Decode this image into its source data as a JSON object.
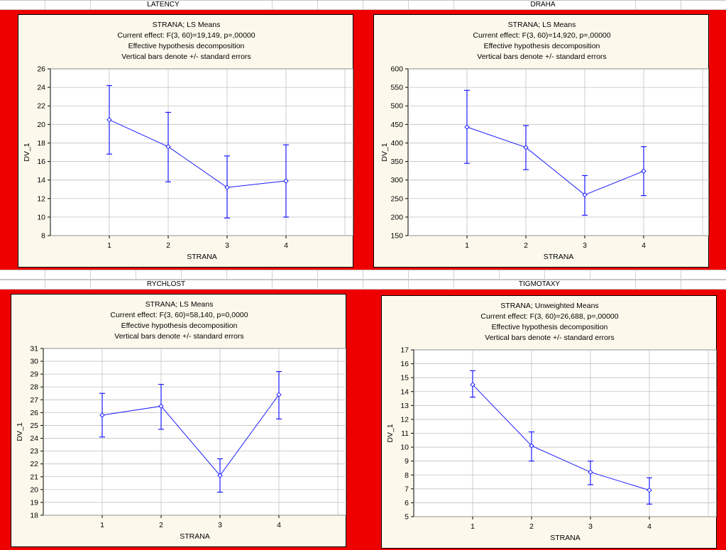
{
  "sheet": {
    "top_labels": [
      "LATENCY",
      "DRAHA"
    ],
    "bottom_labels": [
      "RYCHLOST",
      "TIGMOTAXY"
    ]
  },
  "colors": {
    "panel": "#ee0000",
    "plot_bg": "#fcf9ec",
    "series": "#1a1aff",
    "grid": "#c0c0c0"
  },
  "chart_data": [
    {
      "type": "line",
      "sheet_label": "LATENCY",
      "title_lines": [
        "STRANA; LS Means",
        "Current effect: F(3, 60)=19,149, p=,00000",
        "Effective hypothesis decomposition",
        "Vertical bars denote +/- standard errors"
      ],
      "xlabel": "STRANA",
      "ylabel": "DV_1",
      "categories": [
        "1",
        "2",
        "3",
        "4"
      ],
      "values": [
        20.5,
        17.6,
        13.2,
        13.9
      ],
      "lower": [
        16.8,
        13.8,
        9.9,
        10.0
      ],
      "upper": [
        24.2,
        21.3,
        16.6,
        17.8
      ],
      "ylim": [
        8,
        26
      ],
      "yticks": [
        8,
        10,
        12,
        14,
        16,
        18,
        20,
        22,
        24,
        26
      ],
      "grid": true
    },
    {
      "type": "line",
      "sheet_label": "DRAHA",
      "title_lines": [
        "STRANA; LS Means",
        "Current effect: F(3, 60)=14,920, p=,00000",
        "Effective hypothesis decomposition",
        "Vertical bars denote +/- standard errors"
      ],
      "xlabel": "STRANA",
      "ylabel": "DV_1",
      "categories": [
        "1",
        "2",
        "3",
        "4"
      ],
      "values": [
        443,
        388,
        260,
        324
      ],
      "lower": [
        345,
        328,
        205,
        258
      ],
      "upper": [
        542,
        447,
        312,
        390
      ],
      "ylim": [
        150,
        600
      ],
      "yticks": [
        150,
        200,
        250,
        300,
        350,
        400,
        450,
        500,
        550,
        600
      ],
      "grid": true
    },
    {
      "type": "line",
      "sheet_label": "RYCHLOST",
      "title_lines": [
        "STRANA; LS Means",
        "Current effect: F(3, 60)=58,140, p=0,0000",
        "Effective hypothesis decomposition",
        "Vertical bars denote +/- standard errors"
      ],
      "xlabel": "STRANA",
      "ylabel": "DV_1",
      "categories": [
        "1",
        "2",
        "3",
        "4"
      ],
      "values": [
        25.8,
        26.5,
        21.1,
        27.4
      ],
      "lower": [
        24.1,
        24.7,
        19.8,
        25.5
      ],
      "upper": [
        27.5,
        28.2,
        22.4,
        29.2
      ],
      "ylim": [
        18,
        31
      ],
      "yticks": [
        18,
        19,
        20,
        21,
        22,
        23,
        24,
        25,
        26,
        27,
        28,
        29,
        30,
        31
      ],
      "grid": true
    },
    {
      "type": "line",
      "sheet_label": "TIGMOTAXY",
      "title_lines": [
        "STRANA; Unweighted Means",
        "Current effect: F(3, 60)=26,688, p=,00000",
        "Effective hypothesis decomposition",
        "Vertical bars denote +/- standard errors"
      ],
      "xlabel": "STRANA",
      "ylabel": "DV_1",
      "categories": [
        "1",
        "2",
        "3",
        "4"
      ],
      "values": [
        14.5,
        10.1,
        8.2,
        6.9
      ],
      "lower": [
        13.6,
        9.0,
        7.3,
        5.9
      ],
      "upper": [
        15.5,
        11.1,
        9.0,
        7.8
      ],
      "ylim": [
        5,
        17
      ],
      "yticks": [
        5,
        6,
        7,
        8,
        9,
        10,
        11,
        12,
        13,
        14,
        15,
        16,
        17
      ],
      "grid": true
    }
  ]
}
